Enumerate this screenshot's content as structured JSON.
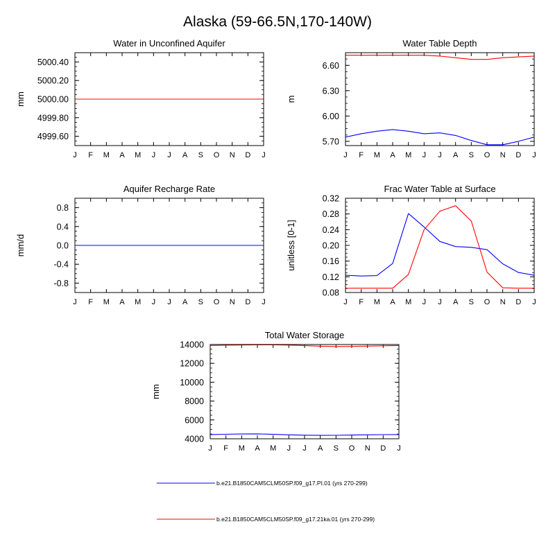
{
  "figure_title": "Alaska (59-66.5N,170-140W)",
  "month_labels": [
    "J",
    "F",
    "M",
    "A",
    "M",
    "J",
    "J",
    "A",
    "S",
    "O",
    "N",
    "D",
    "J"
  ],
  "colors": {
    "pi": "#0000ff",
    "ka21": "#ff0000",
    "axis": "#000000"
  },
  "legend": [
    {
      "label": "b.e21.B1850CAM5CLM50SP.f09_g17.PI.01 (yrs 270-299)",
      "color": "#0000ff"
    },
    {
      "label": "b.e21.B1850CAM5CLM50SP.f09_g17.21ka.01 (yrs 270-299)",
      "color": "#ff0000"
    }
  ],
  "chart_data": [
    {
      "type": "line",
      "title": "Water in Unconfined Aquifer",
      "xlabel": "",
      "ylabel": "mm",
      "ylim": [
        4999.5,
        5000.5
      ],
      "yticks": [
        4999.6,
        4999.8,
        5000.0,
        5000.2,
        5000.4
      ],
      "ytick_labels": [
        "4999.60",
        "4999.80",
        "5000.00",
        "5000.20",
        "5000.40"
      ],
      "ytick_decimals": 2,
      "yminor": 0.05,
      "series": [
        {
          "name": "PI",
          "color": "#0000ff",
          "values": [
            5000,
            5000,
            5000,
            5000,
            5000,
            5000,
            5000,
            5000,
            5000,
            5000,
            5000,
            5000,
            5000
          ]
        },
        {
          "name": "21ka",
          "color": "#ff0000",
          "values": [
            5000,
            5000,
            5000,
            5000,
            5000,
            5000,
            5000,
            5000,
            5000,
            5000,
            5000,
            5000,
            5000
          ]
        }
      ]
    },
    {
      "type": "line",
      "title": "Water Table Depth",
      "xlabel": "",
      "ylabel": "m",
      "ylim": [
        5.65,
        6.75
      ],
      "yticks": [
        5.7,
        6.0,
        6.3,
        6.6
      ],
      "ytick_labels": [
        "5.70",
        "6.00",
        "6.30",
        "6.60"
      ],
      "ytick_decimals": 2,
      "yminor": 0.075,
      "series": [
        {
          "name": "PI",
          "color": "#0000ff",
          "values": [
            5.75,
            5.79,
            5.82,
            5.84,
            5.82,
            5.79,
            5.8,
            5.77,
            5.71,
            5.66,
            5.66,
            5.7,
            5.75
          ]
        },
        {
          "name": "21ka",
          "color": "#ff0000",
          "values": [
            6.72,
            6.72,
            6.72,
            6.72,
            6.72,
            6.72,
            6.71,
            6.69,
            6.67,
            6.67,
            6.69,
            6.7,
            6.71
          ]
        }
      ]
    },
    {
      "type": "line",
      "title": "Aquifer Recharge Rate",
      "xlabel": "",
      "ylabel": "mm/d",
      "ylim": [
        -1.0,
        1.0
      ],
      "yticks": [
        -0.8,
        -0.4,
        0.0,
        0.4,
        0.8
      ],
      "ytick_labels": [
        "-0.8",
        "-0.4",
        "0.0",
        "0.4",
        "0.8"
      ],
      "ytick_decimals": 1,
      "yminor": 0.1,
      "series": [
        {
          "name": "21ka",
          "color": "#ff0000",
          "values": [
            0,
            0,
            0,
            0,
            0,
            0,
            0,
            0,
            0,
            0,
            0,
            0,
            0
          ]
        },
        {
          "name": "PI",
          "color": "#0000ff",
          "values": [
            0,
            0,
            0,
            0,
            0,
            0,
            0,
            0,
            0,
            0,
            0,
            0,
            0
          ]
        }
      ]
    },
    {
      "type": "line",
      "title": "Frac Water Table at Surface",
      "xlabel": "",
      "ylabel": "unitless [0-1]",
      "ylim": [
        0.08,
        0.32
      ],
      "yticks": [
        0.08,
        0.12,
        0.16,
        0.2,
        0.24,
        0.28,
        0.32
      ],
      "ytick_labels": [
        "0.08",
        "0.12",
        "0.16",
        "0.20",
        "0.24",
        "0.28",
        "0.32"
      ],
      "ytick_decimals": 2,
      "yminor": 0.01,
      "series": [
        {
          "name": "PI",
          "color": "#0000ff",
          "values": [
            0.124,
            0.122,
            0.123,
            0.154,
            0.281,
            0.247,
            0.21,
            0.197,
            0.195,
            0.189,
            0.153,
            0.131,
            0.124
          ]
        },
        {
          "name": "21ka",
          "color": "#ff0000",
          "values": [
            0.091,
            0.091,
            0.091,
            0.091,
            0.126,
            0.24,
            0.287,
            0.301,
            0.262,
            0.132,
            0.092,
            0.091,
            0.091
          ]
        }
      ]
    },
    {
      "type": "line",
      "title": "Total Water Storage",
      "xlabel": "",
      "ylabel": "mm",
      "ylim": [
        4000,
        14000
      ],
      "yticks": [
        4000,
        6000,
        8000,
        10000,
        12000,
        14000
      ],
      "ytick_labels": [
        "4000",
        "6000",
        "8000",
        "10000",
        "12000",
        "14000"
      ],
      "ytick_decimals": 0,
      "yminor": 500,
      "series": [
        {
          "name": "PI",
          "color": "#0000ff",
          "values": [
            4450,
            4480,
            4510,
            4520,
            4470,
            4420,
            4380,
            4360,
            4370,
            4400,
            4420,
            4440,
            4450
          ]
        },
        {
          "name": "21ka",
          "color": "#ff0000",
          "values": [
            13900,
            13930,
            13950,
            13960,
            13960,
            13940,
            13880,
            13820,
            13790,
            13800,
            13830,
            13870,
            13900
          ]
        }
      ]
    }
  ]
}
